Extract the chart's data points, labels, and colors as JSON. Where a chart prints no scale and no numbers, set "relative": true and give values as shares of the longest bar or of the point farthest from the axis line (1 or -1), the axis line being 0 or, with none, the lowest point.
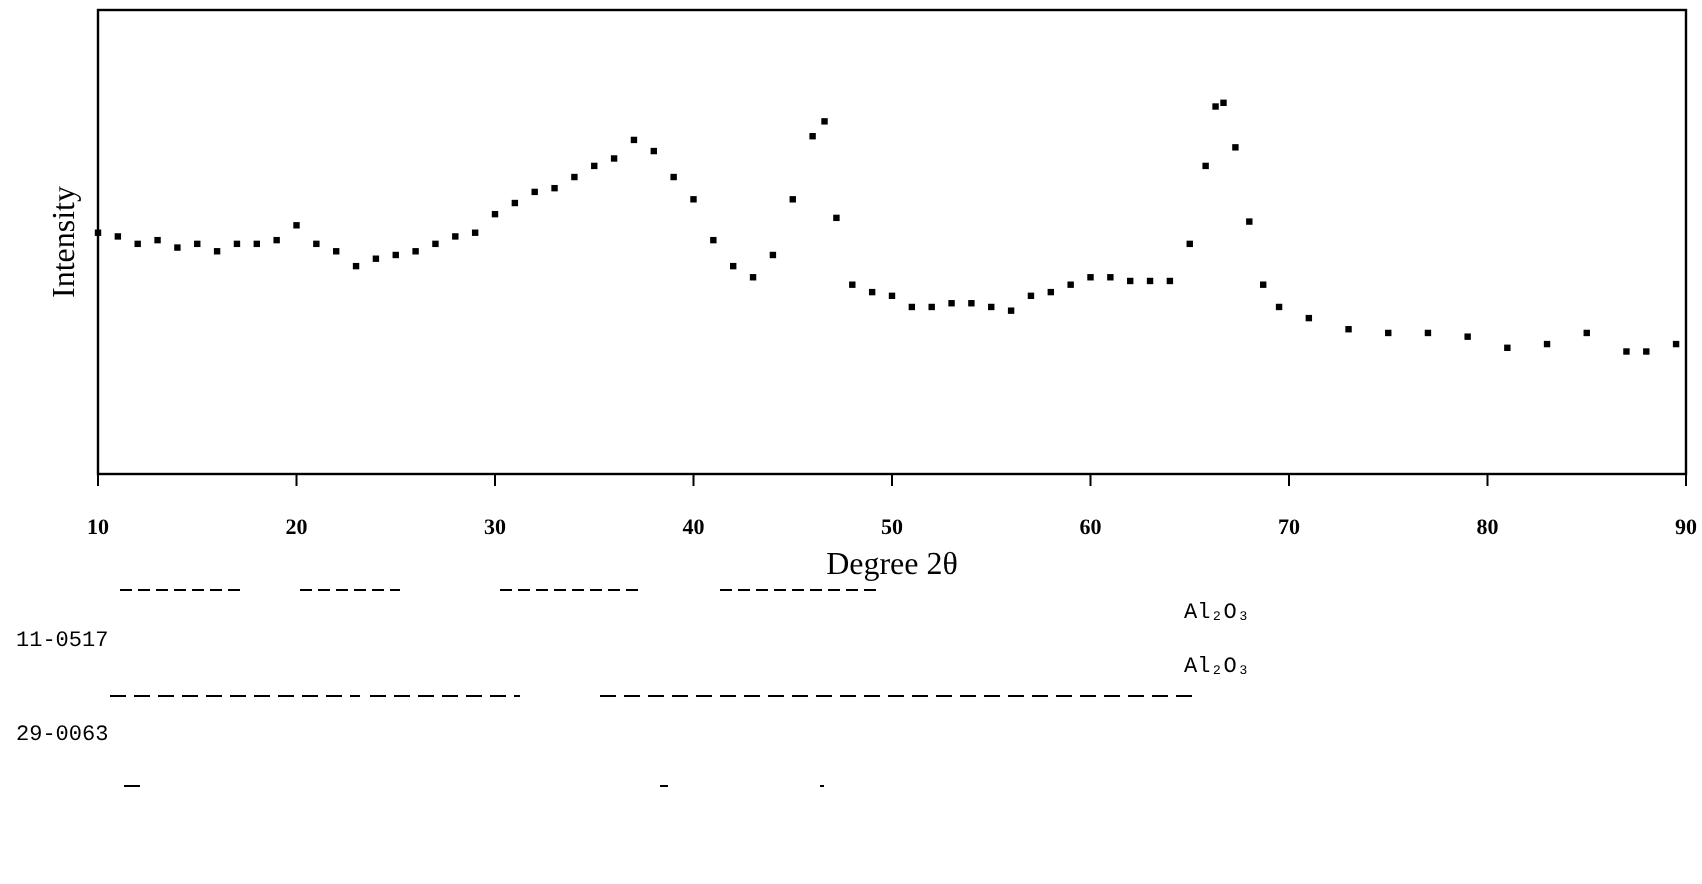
{
  "chart_data": {
    "type": "scatter",
    "xlabel": "Degree 2θ",
    "ylabel": "Intensity",
    "relative": true,
    "marker": "square",
    "color": "#000000",
    "x": [
      10,
      11,
      12,
      13,
      14,
      15,
      16,
      17,
      18,
      19,
      20,
      21,
      22,
      23,
      24,
      25,
      26,
      27,
      28,
      29,
      30,
      31,
      32,
      33,
      34,
      35,
      36,
      37,
      38,
      39,
      40,
      41,
      42,
      43,
      44,
      45,
      46,
      46.6,
      47.2,
      48,
      49,
      50,
      51,
      52,
      53,
      54,
      55,
      56,
      57,
      58,
      59,
      60,
      61,
      62,
      63,
      64,
      65,
      65.8,
      66.3,
      66.7,
      67.3,
      68,
      68.7,
      69.5,
      71,
      73,
      75,
      77,
      79,
      81,
      83,
      85,
      87,
      88,
      89.5
    ],
    "values": [
      0.65,
      0.64,
      0.62,
      0.63,
      0.61,
      0.62,
      0.6,
      0.62,
      0.62,
      0.63,
      0.67,
      0.62,
      0.6,
      0.56,
      0.58,
      0.59,
      0.6,
      0.62,
      0.64,
      0.65,
      0.7,
      0.73,
      0.76,
      0.77,
      0.8,
      0.83,
      0.85,
      0.9,
      0.87,
      0.8,
      0.74,
      0.63,
      0.56,
      0.53,
      0.59,
      0.74,
      0.91,
      0.95,
      0.69,
      0.51,
      0.49,
      0.48,
      0.45,
      0.45,
      0.46,
      0.46,
      0.45,
      0.44,
      0.48,
      0.49,
      0.51,
      0.53,
      0.53,
      0.52,
      0.52,
      0.52,
      0.62,
      0.83,
      0.99,
      1.0,
      0.88,
      0.68,
      0.51,
      0.45,
      0.42,
      0.39,
      0.38,
      0.38,
      0.37,
      0.34,
      0.35,
      0.38,
      0.33,
      0.33,
      0.35
    ],
    "xlim": [
      10,
      90
    ],
    "xticks": [
      10,
      20,
      30,
      40,
      50,
      60,
      70,
      80,
      90
    ],
    "annotations": [
      "11-0517",
      "29-0063",
      "Al₂O₃",
      "Al₂O₃"
    ]
  }
}
